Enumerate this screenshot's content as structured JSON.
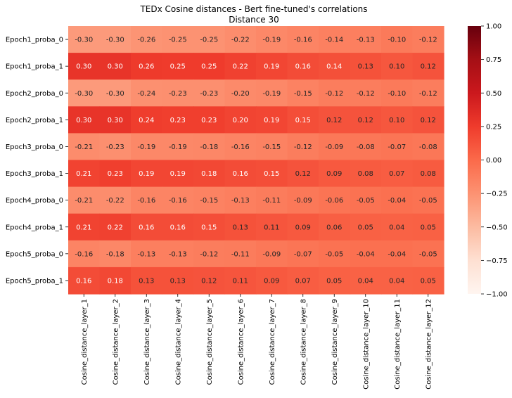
{
  "chart_data": {
    "type": "heatmap",
    "title": "TEDx Cosine distances - Bert fine-tuned's correlations",
    "subtitle": "Distance 30",
    "x_categories": [
      "Cosine_distance_layer_1",
      "Cosine_distance_layer_2",
      "Cosine_distance_layer_3",
      "Cosine_distance_layer_4",
      "Cosine_distance_layer_5",
      "Cosine_distance_layer_6",
      "Cosine_distance_layer_7",
      "Cosine_distance_layer_8",
      "Cosine_distance_layer_9",
      "Cosine_distance_layer_10",
      "Cosine_distance_layer_11",
      "Cosine_distance_layer_12"
    ],
    "y_categories": [
      "Epoch1_proba_0",
      "Epoch1_proba_1",
      "Epoch2_proba_0",
      "Epoch2_proba_1",
      "Epoch3_proba_0",
      "Epoch3_proba_1",
      "Epoch4_proba_0",
      "Epoch4_proba_1",
      "Epoch5_proba_0",
      "Epoch5_proba_1"
    ],
    "values": [
      [
        -0.3,
        -0.3,
        -0.26,
        -0.25,
        -0.25,
        -0.22,
        -0.19,
        -0.16,
        -0.14,
        -0.13,
        -0.1,
        -0.12
      ],
      [
        0.3,
        0.3,
        0.26,
        0.25,
        0.25,
        0.22,
        0.19,
        0.16,
        0.14,
        0.13,
        0.1,
        0.12
      ],
      [
        -0.3,
        -0.3,
        -0.24,
        -0.23,
        -0.23,
        -0.2,
        -0.19,
        -0.15,
        -0.12,
        -0.12,
        -0.1,
        -0.12
      ],
      [
        0.3,
        0.3,
        0.24,
        0.23,
        0.23,
        0.2,
        0.19,
        0.15,
        0.12,
        0.12,
        0.1,
        0.12
      ],
      [
        -0.21,
        -0.23,
        -0.19,
        -0.19,
        -0.18,
        -0.16,
        -0.15,
        -0.12,
        -0.09,
        -0.08,
        -0.07,
        -0.08
      ],
      [
        0.21,
        0.23,
        0.19,
        0.19,
        0.18,
        0.16,
        0.15,
        0.12,
        0.09,
        0.08,
        0.07,
        0.08
      ],
      [
        -0.21,
        -0.22,
        -0.16,
        -0.16,
        -0.15,
        -0.13,
        -0.11,
        -0.09,
        -0.06,
        -0.05,
        -0.04,
        -0.05
      ],
      [
        0.21,
        0.22,
        0.16,
        0.16,
        0.15,
        0.13,
        0.11,
        0.09,
        0.06,
        0.05,
        0.04,
        0.05
      ],
      [
        -0.16,
        -0.18,
        -0.13,
        -0.13,
        -0.12,
        -0.11,
        -0.09,
        -0.07,
        -0.05,
        -0.04,
        -0.04,
        -0.05
      ],
      [
        0.16,
        0.18,
        0.13,
        0.13,
        0.12,
        0.11,
        0.09,
        0.07,
        0.05,
        0.04,
        0.04,
        0.05
      ]
    ],
    "value_range": [
      -1.0,
      1.0
    ],
    "colormap": "Reds",
    "colorbar_ticks": [
      "1.00",
      "0.75",
      "0.50",
      "0.25",
      "0.00",
      "−0.25",
      "−0.50",
      "−0.75",
      "−1.00"
    ],
    "colorbar_tick_values": [
      1.0,
      0.75,
      0.5,
      0.25,
      0.0,
      -0.25,
      -0.5,
      -0.75,
      -1.0
    ],
    "annotated": true,
    "grid": false
  }
}
